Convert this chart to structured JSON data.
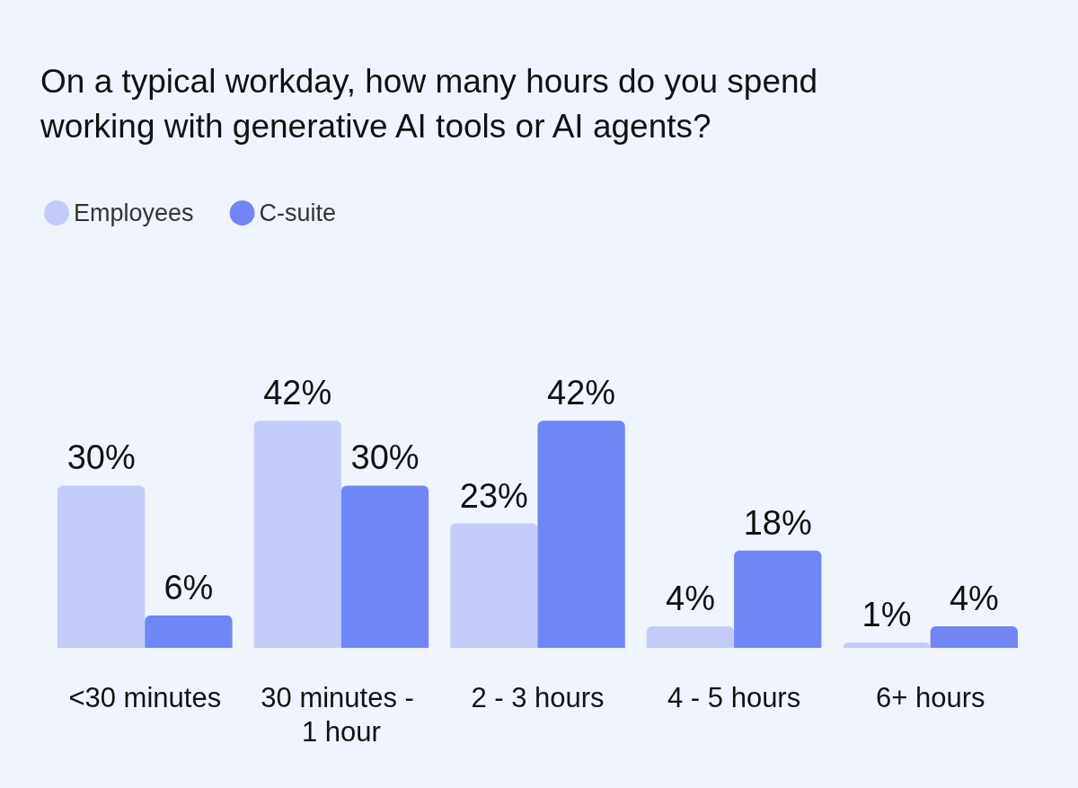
{
  "chart_data": {
    "type": "bar",
    "title": "On a typical workday, how many hours do you spend working with generative AI tools or AI agents?",
    "categories": [
      "<30 minutes",
      "30 minutes - 1 hour",
      "2 - 3 hours",
      "4 - 5 hours",
      "6+ hours"
    ],
    "series": [
      {
        "name": "Employees",
        "color": "#c3cbfa",
        "values": [
          30,
          42,
          23,
          4,
          1
        ],
        "value_labels": [
          "30%",
          "42%",
          "23%",
          "4%",
          "1%"
        ]
      },
      {
        "name": "C-suite",
        "color": "#7086f5",
        "values": [
          6,
          30,
          42,
          18,
          4
        ],
        "value_labels": [
          "6%",
          "30%",
          "42%",
          "18%",
          "4%"
        ]
      }
    ],
    "legend": "top left",
    "grid": false
  }
}
